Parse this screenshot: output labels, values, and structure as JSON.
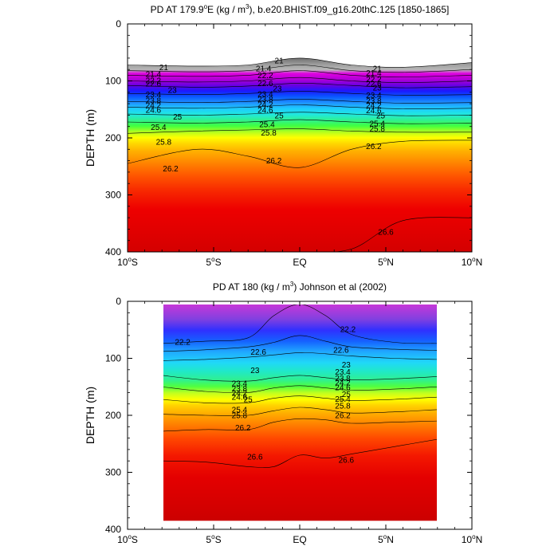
{
  "chart_data": [
    {
      "type": "contour",
      "title_prefix": "PD AT 179.9",
      "title_deg": "o",
      "title_mid": "E (kg / m",
      "title_pow": "3",
      "title_suffix": "), b.e20.BHIST.f09_g16.20thC.125 [1850-1865]",
      "ylabel": "DEPTH (m)",
      "x_ticks": [
        "10°S",
        "5°S",
        "EQ",
        "5°N",
        "10°N"
      ],
      "x_values": [
        -10,
        -5,
        0,
        5,
        10
      ],
      "xlim": [
        -10,
        10
      ],
      "y_ticks": [
        "0",
        "100",
        "200",
        "300",
        "400"
      ],
      "y_values": [
        0,
        100,
        200,
        300,
        400
      ],
      "ylim": [
        0,
        400
      ],
      "data_xlim": [
        -10,
        10
      ],
      "contour_levels": [
        21,
        21.2,
        21.4,
        21.6,
        21.8,
        22,
        22.2,
        22.4,
        22.6,
        22.8,
        23,
        23.2,
        23.4,
        23.6,
        23.8,
        24,
        24.2,
        24.4,
        24.6,
        24.8,
        25,
        25.2,
        25.4,
        25.6,
        25.8,
        26,
        26.2,
        26.4,
        26.6
      ],
      "isopycnal_depths": {
        "x": [
          -10,
          -6,
          -3,
          0,
          3,
          6,
          10
        ],
        "levels": [
          {
            "value": 21,
            "depth": [
              72,
              74,
              72,
              60,
              72,
              76,
              68
            ]
          },
          {
            "value": 21.4,
            "depth": [
              82,
              84,
              82,
              72,
              82,
              85,
              80
            ]
          },
          {
            "value": 22,
            "depth": [
              90,
              92,
              90,
              82,
              90,
              93,
              90
            ]
          },
          {
            "value": 22.6,
            "depth": [
              100,
              102,
              100,
              94,
              100,
              103,
              100
            ]
          },
          {
            "value": 23,
            "depth": [
              108,
              111,
              109,
              104,
              108,
              112,
              110
            ]
          },
          {
            "value": 23.6,
            "depth": [
              122,
              124,
              122,
              118,
              122,
              125,
              124
            ]
          },
          {
            "value": 24.2,
            "depth": [
              136,
              138,
              136,
              132,
              136,
              139,
              138
            ]
          },
          {
            "value": 24.6,
            "depth": [
              146,
              148,
              146,
              142,
              146,
              149,
              148
            ]
          },
          {
            "value": 25,
            "depth": [
              158,
              160,
              158,
              155,
              158,
              161,
              160
            ]
          },
          {
            "value": 25.4,
            "depth": [
              172,
              174,
              172,
              168,
              172,
              175,
              174
            ]
          },
          {
            "value": 25.8,
            "depth": [
              192,
              188,
              186,
              184,
              188,
              190,
              190
            ]
          },
          {
            "value": 26.2,
            "depth": [
              245,
              220,
              232,
              252,
              220,
              206,
              204
            ]
          },
          {
            "value": 26.6,
            "depth": [
              400,
              400,
              400,
              400,
              395,
              345,
              340
            ]
          }
        ]
      },
      "labels": [
        {
          "text": "21",
          "x": -7.9,
          "y": 76
        },
        {
          "text": "21",
          "x": -1.2,
          "y": 64
        },
        {
          "text": "21",
          "x": 4.5,
          "y": 78
        },
        {
          "text": "21.4",
          "x": -8.5,
          "y": 88
        },
        {
          "text": "21.4",
          "x": -2.1,
          "y": 78
        },
        {
          "text": "21.4",
          "x": 4.3,
          "y": 86
        },
        {
          "text": "22.2",
          "x": -8.5,
          "y": 99
        },
        {
          "text": "22.2",
          "x": -2.0,
          "y": 90
        },
        {
          "text": "22.2",
          "x": 4.3,
          "y": 97
        },
        {
          "text": "22.6",
          "x": -8.5,
          "y": 105
        },
        {
          "text": "22.6",
          "x": -2.0,
          "y": 104
        },
        {
          "text": "22.6",
          "x": 4.3,
          "y": 105
        },
        {
          "text": "23",
          "x": -7.4,
          "y": 116
        },
        {
          "text": "23",
          "x": -1.3,
          "y": 113
        },
        {
          "text": "23",
          "x": 4.5,
          "y": 112
        },
        {
          "text": "23.4",
          "x": -8.5,
          "y": 124
        },
        {
          "text": "23.4",
          "x": -2.0,
          "y": 123
        },
        {
          "text": "23.4",
          "x": 4.3,
          "y": 125
        },
        {
          "text": "23.8",
          "x": -8.5,
          "y": 134
        },
        {
          "text": "23.8",
          "x": -2.0,
          "y": 132
        },
        {
          "text": "23.8",
          "x": 4.3,
          "y": 135
        },
        {
          "text": "24.2",
          "x": -8.5,
          "y": 143
        },
        {
          "text": "24.2",
          "x": -2.0,
          "y": 141
        },
        {
          "text": "24.2",
          "x": 4.3,
          "y": 143
        },
        {
          "text": "24.6",
          "x": -8.5,
          "y": 151
        },
        {
          "text": "24.6",
          "x": -2.0,
          "y": 151
        },
        {
          "text": "24.6",
          "x": 4.3,
          "y": 152
        },
        {
          "text": "25",
          "x": -7.1,
          "y": 163
        },
        {
          "text": "25",
          "x": -1.2,
          "y": 161
        },
        {
          "text": "25",
          "x": 4.7,
          "y": 161
        },
        {
          "text": "25.4",
          "x": -8.2,
          "y": 181
        },
        {
          "text": "25.4",
          "x": -1.9,
          "y": 176
        },
        {
          "text": "25.4",
          "x": 4.5,
          "y": 175
        },
        {
          "text": "25.8",
          "x": -7.9,
          "y": 207
        },
        {
          "text": "25.8",
          "x": -1.8,
          "y": 191
        },
        {
          "text": "25.8",
          "x": 4.5,
          "y": 184
        },
        {
          "text": "26.2",
          "x": -7.5,
          "y": 254
        },
        {
          "text": "26.2",
          "x": -1.5,
          "y": 240
        },
        {
          "text": "26.2",
          "x": 4.3,
          "y": 215
        },
        {
          "text": "26.6",
          "x": 5.0,
          "y": 365
        }
      ]
    },
    {
      "type": "contour",
      "title": "PD AT 180 (kg / m",
      "title_pow": "3",
      "title_suffix": ") Johnson et al (2002)",
      "ylabel": "DEPTH (m)",
      "x_ticks": [
        "10°S",
        "5°S",
        "EQ",
        "5°N",
        "10°N"
      ],
      "x_values": [
        -10,
        -5,
        0,
        5,
        10
      ],
      "xlim": [
        -10,
        10
      ],
      "y_ticks": [
        "0",
        "100",
        "200",
        "300",
        "400"
      ],
      "y_values": [
        0,
        100,
        200,
        300,
        400
      ],
      "ylim": [
        0,
        400
      ],
      "data_xlim": [
        -8,
        8
      ],
      "data_ylim": [
        5,
        385
      ],
      "contour_levels": [
        21,
        21.2,
        21.4,
        21.6,
        21.8,
        22,
        22.2,
        22.4,
        22.6,
        22.8,
        23,
        23.2,
        23.4,
        23.6,
        23.8,
        24,
        24.2,
        24.4,
        24.6,
        24.8,
        25,
        25.2,
        25.4,
        25.6,
        25.8,
        26,
        26.2,
        26.4,
        26.6
      ],
      "isopycnal_depths": {
        "x": [
          -8,
          -5.5,
          -3,
          -1.5,
          0,
          1.5,
          3,
          5.5,
          8
        ],
        "levels": [
          {
            "value": 22.2,
            "depth": [
              74,
              70,
              64,
              25,
              5,
              25,
              58,
              72,
              74
            ]
          },
          {
            "value": 22.6,
            "depth": [
              88,
              85,
              80,
              72,
              60,
              70,
              80,
              84,
              86
            ]
          },
          {
            "value": 23,
            "depth": [
              104,
              102,
              98,
              94,
              90,
              92,
              96,
              100,
              102
            ]
          },
          {
            "value": 23.4,
            "depth": [
              130,
              138,
              140,
              134,
              130,
              134,
              138,
              136,
              132
            ]
          },
          {
            "value": 24.2,
            "depth": [
              150,
              158,
              160,
              152,
              148,
              152,
              156,
              154,
              150
            ]
          },
          {
            "value": 25,
            "depth": [
              172,
              178,
              178,
              170,
              166,
              170,
              174,
              172,
              168
            ]
          },
          {
            "value": 25.8,
            "depth": [
              198,
              200,
              200,
              192,
              186,
              190,
              196,
              194,
              190
            ]
          },
          {
            "value": 26.2,
            "depth": [
              228,
              225,
              225,
              212,
              206,
              208,
              214,
              212,
              210
            ]
          },
          {
            "value": 26.6,
            "depth": [
              280,
              282,
              290,
              290,
              270,
              275,
              268,
              255,
              242
            ]
          }
        ]
      },
      "labels": [
        {
          "text": "22.2",
          "x": -6.8,
          "y": 71
        },
        {
          "text": "22.2",
          "x": 2.8,
          "y": 49
        },
        {
          "text": "22.6",
          "x": -2.4,
          "y": 89
        },
        {
          "text": "22.6",
          "x": 2.4,
          "y": 85
        },
        {
          "text": "23",
          "x": -2.6,
          "y": 121
        },
        {
          "text": "23",
          "x": 2.7,
          "y": 111
        },
        {
          "text": "23.4",
          "x": -3.5,
          "y": 144
        },
        {
          "text": "23.4",
          "x": 2.5,
          "y": 124
        },
        {
          "text": "23.8",
          "x": -3.5,
          "y": 153
        },
        {
          "text": "23.8",
          "x": 2.5,
          "y": 135
        },
        {
          "text": "24.2",
          "x": -3.5,
          "y": 161
        },
        {
          "text": "24.2",
          "x": 2.5,
          "y": 143
        },
        {
          "text": "24.6",
          "x": -3.5,
          "y": 168
        },
        {
          "text": "24.6",
          "x": 2.5,
          "y": 151
        },
        {
          "text": "25",
          "x": -3.0,
          "y": 172
        },
        {
          "text": "25",
          "x": 2.7,
          "y": 163
        },
        {
          "text": "25.4",
          "x": -3.5,
          "y": 190
        },
        {
          "text": "25.4",
          "x": 2.5,
          "y": 171
        },
        {
          "text": "25.8",
          "x": -3.5,
          "y": 200
        },
        {
          "text": "25.8",
          "x": 2.5,
          "y": 183
        },
        {
          "text": "26.2",
          "x": -3.3,
          "y": 222
        },
        {
          "text": "26.2",
          "x": 2.5,
          "y": 200
        },
        {
          "text": "26.6",
          "x": -2.6,
          "y": 273
        },
        {
          "text": "26.6",
          "x": 2.7,
          "y": 278
        }
      ]
    }
  ]
}
